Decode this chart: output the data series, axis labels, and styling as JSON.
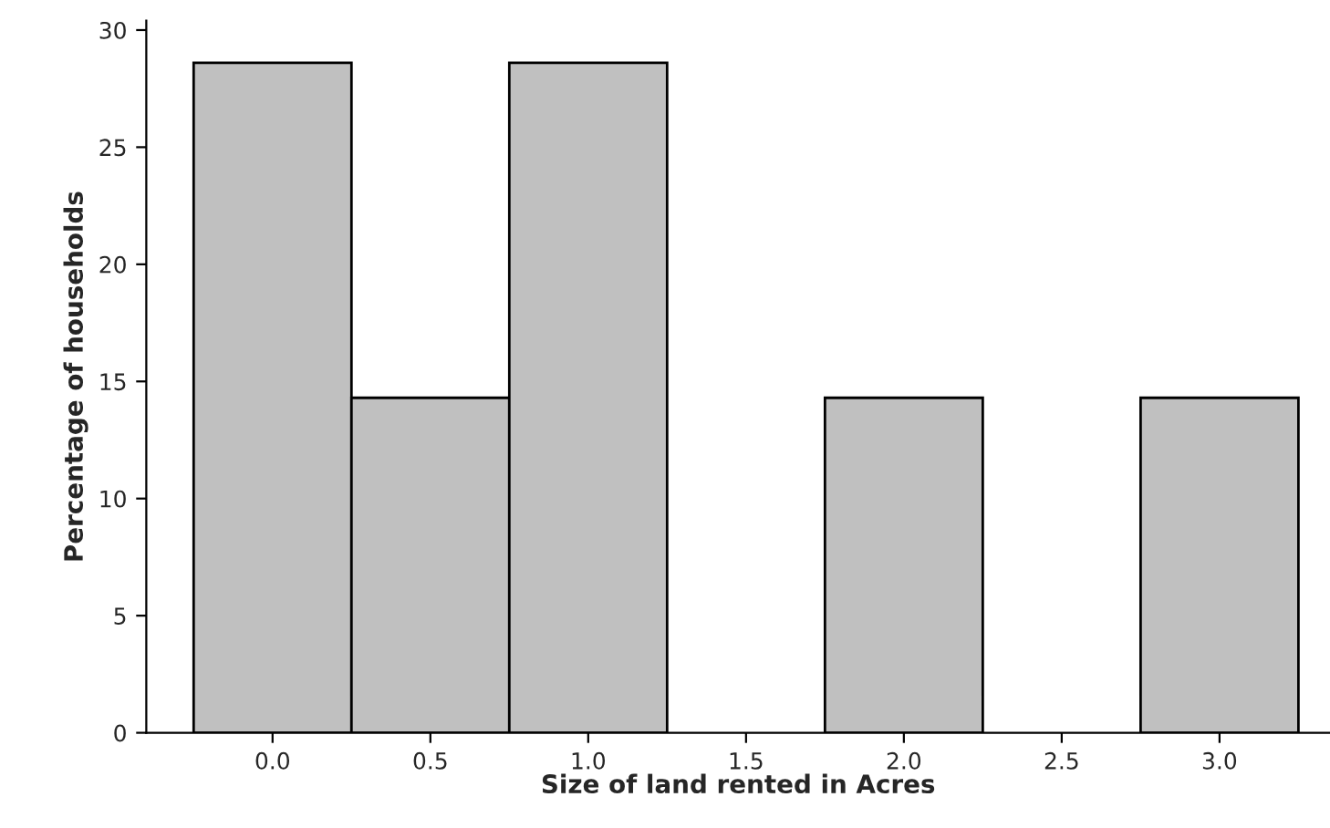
{
  "chart_data": {
    "type": "histogram",
    "xlabel": "Size of land rented in Acres",
    "ylabel": "Percentage of households",
    "bins": [
      -0.25,
      0.25,
      0.75,
      1.25,
      1.75,
      2.25,
      2.75,
      3.25
    ],
    "values": [
      28.6,
      14.3,
      28.6,
      0,
      14.3,
      0,
      14.3
    ],
    "color": "#c0c0c0",
    "xlim": [
      -0.4,
      3.35
    ],
    "ylim": [
      0,
      30.4
    ],
    "xticks": [
      {
        "value": 0,
        "label": "0.0"
      },
      {
        "value": 0.5,
        "label": "0.5"
      },
      {
        "value": 1,
        "label": "1.0"
      },
      {
        "value": 1.5,
        "label": "1.5"
      },
      {
        "value": 2,
        "label": "2.0"
      },
      {
        "value": 2.5,
        "label": "2.5"
      },
      {
        "value": 3,
        "label": "3.0"
      }
    ],
    "yticks": [
      0,
      5,
      10,
      15,
      20,
      25,
      30
    ],
    "grid": false,
    "legend": false
  }
}
